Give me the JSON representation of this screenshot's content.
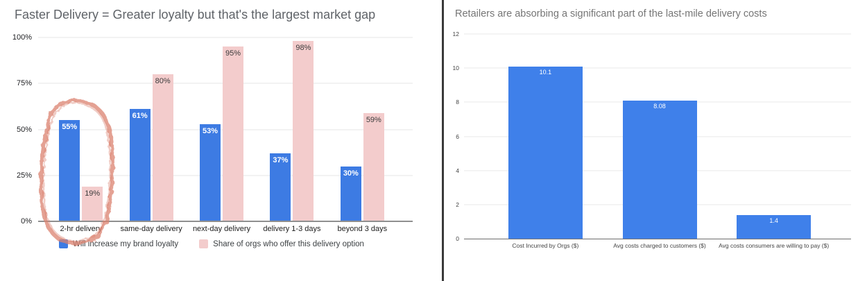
{
  "colors": {
    "background": "#FFFFFF",
    "divider": "#3A3A3A",
    "loyalty_blue": "#3D7BE3",
    "offer_pink": "#F3CCCC",
    "annotation_salmon": "#DC8270",
    "cost_blue": "#3F80EA"
  },
  "chart_data": [
    {
      "type": "bar",
      "variant": "grouped-vertical",
      "title": "Faster Delivery = Greater loyalty but that's the largest market gap",
      "categories": [
        "2-hr delivery",
        "same-day delivery",
        "next-day delivery",
        "delivery 1-3 days",
        "beyond 3 days"
      ],
      "series": [
        {
          "name": "Will increase my brand loyalty",
          "values": [
            55,
            61,
            53,
            37,
            30
          ],
          "labels": [
            "55%",
            "61%",
            "53%",
            "37%",
            "30%"
          ],
          "color": "#3D7BE3",
          "label_color": "#FFFFFF"
        },
        {
          "name": "Share of orgs who offer this delivery option",
          "values": [
            19,
            80,
            95,
            98,
            59
          ],
          "labels": [
            "19%",
            "80%",
            "95%",
            "98%",
            "59%"
          ],
          "color": "#F3CCCC",
          "label_color": "#3B3B3B"
        }
      ],
      "xlabel": "",
      "ylabel": "",
      "ylim": [
        0,
        100
      ],
      "y_ticks": [
        {
          "value": 0,
          "label": "0%"
        },
        {
          "value": 25,
          "label": "25%"
        },
        {
          "value": 50,
          "label": "50%"
        },
        {
          "value": 75,
          "label": "75%"
        },
        {
          "value": 100,
          "label": "100%"
        }
      ],
      "grid": true,
      "legend_position": "bottom",
      "annotation": {
        "type": "hand-drawn-circle",
        "around": "2-hr delivery category group",
        "color": "#DC8270"
      }
    },
    {
      "type": "bar",
      "title": "Retailers are absorbing a significant part of the last-mile delivery costs",
      "categories": [
        "Cost Incurred by Orgs ($)",
        "Avg costs charged to customers ($)",
        "Avg costs consumers are willing to pay ($)"
      ],
      "values": [
        10.1,
        8.08,
        1.4
      ],
      "labels": [
        "10.1",
        "8.08",
        "1.4"
      ],
      "bar_color": "#3F80EA",
      "value_label_color": "#FFFFFF",
      "xlabel": "",
      "ylabel": "",
      "ylim": [
        0,
        12
      ],
      "y_ticks": [
        {
          "value": 0,
          "label": "0"
        },
        {
          "value": 2,
          "label": "2"
        },
        {
          "value": 4,
          "label": "4"
        },
        {
          "value": 6,
          "label": "6"
        },
        {
          "value": 8,
          "label": "8"
        },
        {
          "value": 10,
          "label": "10"
        },
        {
          "value": 12,
          "label": "12"
        }
      ],
      "grid": true,
      "legend_position": "none"
    }
  ]
}
